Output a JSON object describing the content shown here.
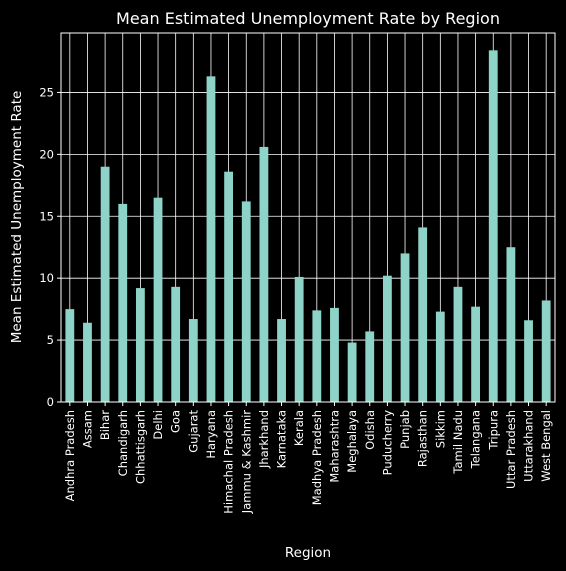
{
  "colors": {
    "background": "#000000",
    "bar": "#8dd3c7",
    "grid": "#ffffff",
    "axis": "#ffffff",
    "text": "#ffffff"
  },
  "chart_data": {
    "type": "bar",
    "title": "Mean Estimated Unemployment Rate by Region",
    "xlabel": "Region",
    "ylabel": "Mean Estimated Unemployment Rate",
    "ylim": [
      0,
      29.8
    ],
    "yticks": [
      0,
      5,
      10,
      15,
      20,
      25
    ],
    "grid": true,
    "legend": "none",
    "categories": [
      "Andhra Pradesh",
      "Assam",
      "Bihar",
      "Chandigarh",
      "Chhattisgarh",
      "Delhi",
      "Goa",
      "Gujarat",
      "Haryana",
      "Himachal Pradesh",
      "Jammu & Kashmir",
      "Jharkhand",
      "Karnataka",
      "Kerala",
      "Madhya Pradesh",
      "Maharashtra",
      "Meghalaya",
      "Odisha",
      "Puducherry",
      "Punjab",
      "Rajasthan",
      "Sikkim",
      "Tamil Nadu",
      "Telangana",
      "Tripura",
      "Uttar Pradesh",
      "Uttarakhand",
      "West Bengal"
    ],
    "values": [
      7.5,
      6.4,
      19.0,
      16.0,
      9.2,
      16.5,
      9.3,
      6.7,
      26.3,
      18.6,
      16.2,
      20.6,
      6.7,
      10.1,
      7.4,
      7.6,
      4.8,
      5.7,
      10.2,
      12.0,
      14.1,
      7.3,
      9.3,
      7.7,
      28.4,
      12.5,
      6.6,
      8.2
    ]
  }
}
